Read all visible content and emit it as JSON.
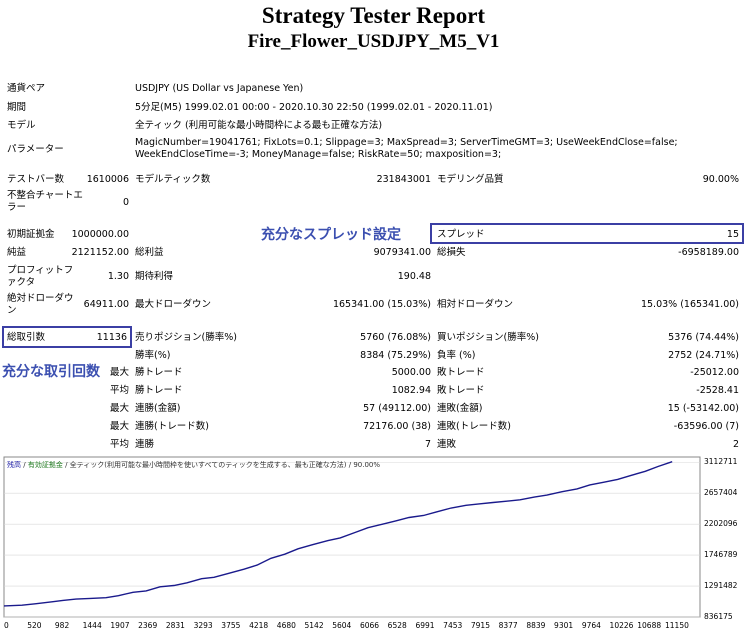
{
  "report": {
    "title": "Strategy Tester Report",
    "subtitle": "Fire_Flower_USDJPY_M5_V1"
  },
  "info": {
    "symbol_label": "通貨ペア",
    "symbol_value": "USDJPY (US Dollar vs Japanese Yen)",
    "period_label": "期間",
    "period_value": "5分足(M5) 1999.02.01 00:00 - 2020.10.30 22:50 (1999.02.01 - 2020.11.01)",
    "model_label": "モデル",
    "model_value": "全ティック (利用可能な最小時間枠による最も正確な方法)",
    "params_label": "パラメーター",
    "params_value": "MagicNumber=19041761; FixLots=0.1; Slippage=3; MaxSpread=3; ServerTimeGMT=3; UseWeekEndClose=false; WeekEndCloseTime=-3; MoneyManage=false; RiskRate=50; maxposition=3;"
  },
  "stats": {
    "bars_label": "テストバー数",
    "bars_value": "1610006",
    "ticks_label": "モデルティック数",
    "ticks_value": "231843001",
    "quality_label": "モデリング品質",
    "quality_value": "90.00%",
    "mismatch_label": "不整合チャートエラー",
    "mismatch_value": "0",
    "deposit_label": "初期証拠金",
    "deposit_value": "1000000.00",
    "spread_label": "スプレッド",
    "spread_value": "15",
    "net_label": "純益",
    "net_value": "2121152.00",
    "gross_profit_label": "総利益",
    "gross_profit_value": "9079341.00",
    "gross_loss_label": "総損失",
    "gross_loss_value": "-6958189.00",
    "pf_label": "プロフィットファクタ",
    "pf_value": "1.30",
    "expected_label": "期待利得",
    "expected_value": "190.48",
    "abs_dd_label": "絶対ドローダウン",
    "abs_dd_value": "64911.00",
    "max_dd_label": "最大ドローダウン",
    "max_dd_value": "165341.00 (15.03%)",
    "rel_dd_label": "相対ドローダウン",
    "rel_dd_value": "15.03% (165341.00)",
    "trades_label": "総取引数",
    "trades_value": "11136",
    "short_label": "売りポジション(勝率%)",
    "short_value": "5760 (76.08%)",
    "long_label": "買いポジション(勝率%)",
    "long_value": "5376 (74.44%)",
    "win_label": "勝率(%)",
    "win_value": "8384 (75.29%)",
    "loss_label": "負率 (%)",
    "loss_value": "2752 (24.71%)",
    "max_word": "最大",
    "avg_word": "平均",
    "max_win_label": "勝トレード",
    "max_win_value": "5000.00",
    "max_loss_label": "敗トレード",
    "max_loss_value": "-25012.00",
    "avg_win_label": "勝トレード",
    "avg_win_value": "1082.94",
    "avg_loss_label": "敗トレード",
    "avg_loss_value": "-2528.41",
    "consec_win_label": "連勝(金額)",
    "consec_win_value": "57 (49112.00)",
    "consec_loss_label": "連敗(金額)",
    "consec_loss_value": "15 (-53142.00)",
    "consec_profit_label": "連勝(トレード数)",
    "consec_profit_value": "72176.00 (38)",
    "consec_lossamt_label": "連敗(トレード数)",
    "consec_lossamt_value": "-63596.00 (7)",
    "avg_consec_win_label": "連勝",
    "avg_consec_win_value": "7",
    "avg_consec_loss_label": "連敗",
    "avg_consec_loss_value": "2"
  },
  "callouts": {
    "spread_note": "充分なスプレッド設定",
    "trades_note": "充分な取引回数"
  },
  "chart_data": {
    "type": "line",
    "legend": [
      "残高",
      "/",
      "有効証拠金",
      "/",
      "全ティック(利用可能な最小時間枠を使いすべてのティックを生成する、最も正確な方法)",
      "/",
      "90.00%"
    ],
    "series_name": "残高",
    "series_color": "#1a1a8c",
    "ylim": [
      836175,
      3190000
    ],
    "xlim": [
      0,
      11600
    ],
    "yticks": [
      "3112711",
      "2657404",
      "2202096",
      "1746789",
      "1291482",
      "836175"
    ],
    "ytick_values": [
      3112711,
      2657404,
      2202096,
      1746789,
      1291482,
      836175
    ],
    "xticks": [
      "0",
      "520",
      "982",
      "1444",
      "1907",
      "2369",
      "2831",
      "3293",
      "3755",
      "4218",
      "4680",
      "5142",
      "5604",
      "6066",
      "6528",
      "6991",
      "7453",
      "7915",
      "8377",
      "8839",
      "9301",
      "9764",
      "10226",
      "10688",
      "11150"
    ],
    "xtick_values": [
      0,
      520,
      982,
      1444,
      1907,
      2369,
      2831,
      3293,
      3755,
      4218,
      4680,
      5142,
      5604,
      6066,
      6528,
      6991,
      7453,
      7915,
      8377,
      8839,
      9301,
      9764,
      10226,
      10688,
      11150
    ],
    "x": [
      0,
      300,
      520,
      800,
      982,
      1200,
      1444,
      1700,
      1907,
      2150,
      2369,
      2600,
      2831,
      3050,
      3293,
      3500,
      3755,
      4000,
      4218,
      4450,
      4680,
      4900,
      5142,
      5400,
      5604,
      5850,
      6066,
      6300,
      6528,
      6750,
      6991,
      7200,
      7453,
      7700,
      7915,
      8150,
      8377,
      8600,
      8839,
      9050,
      9301,
      9550,
      9764,
      10000,
      10226,
      10450,
      10688,
      10900,
      11136
    ],
    "y": [
      1000000,
      1010000,
      1030000,
      1060000,
      1080000,
      1100000,
      1110000,
      1120000,
      1150000,
      1200000,
      1220000,
      1280000,
      1300000,
      1340000,
      1400000,
      1420000,
      1480000,
      1540000,
      1600000,
      1700000,
      1760000,
      1840000,
      1900000,
      1960000,
      2000000,
      2080000,
      2150000,
      2200000,
      2250000,
      2300000,
      2330000,
      2380000,
      2440000,
      2480000,
      2500000,
      2520000,
      2540000,
      2560000,
      2600000,
      2630000,
      2680000,
      2720000,
      2780000,
      2820000,
      2860000,
      2920000,
      2980000,
      3050000,
      3121152
    ]
  }
}
